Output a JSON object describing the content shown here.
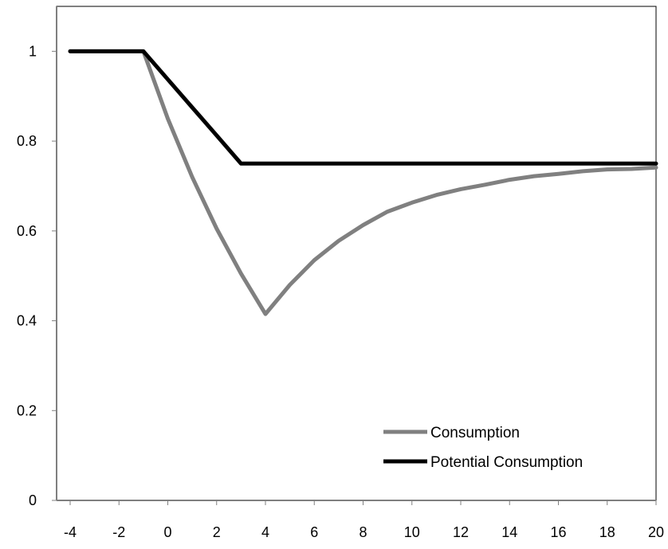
{
  "chart_data": {
    "type": "line",
    "title": "",
    "xlabel": "",
    "ylabel": "",
    "xlim": [
      -4,
      20
    ],
    "ylim": [
      0,
      1.1
    ],
    "x_ticks": [
      -4,
      -2,
      0,
      2,
      4,
      6,
      8,
      10,
      12,
      14,
      16,
      18,
      20
    ],
    "y_ticks": [
      0,
      0.2,
      0.4,
      0.6,
      0.8,
      1
    ],
    "x_tick_labels": [
      "-4",
      "-2",
      "0",
      "2",
      "4",
      "6",
      "8",
      "10",
      "12",
      "14",
      "16",
      "18",
      "20"
    ],
    "y_tick_labels": [
      "0",
      "0.2",
      "0.4",
      "0.6",
      "0.8",
      "1"
    ],
    "grid": false,
    "legend_position": "bottom-right",
    "x": [
      -4,
      -3,
      -2,
      -1,
      0,
      1,
      2,
      3,
      4,
      5,
      6,
      7,
      8,
      9,
      10,
      11,
      12,
      13,
      14,
      15,
      16,
      17,
      18,
      19,
      20
    ],
    "series": [
      {
        "name": "Consumption",
        "color": "#808080",
        "values": [
          1,
          1,
          1,
          1,
          0.85,
          0.72,
          0.605,
          0.505,
          0.415,
          0.48,
          0.535,
          0.578,
          0.613,
          0.643,
          0.663,
          0.68,
          0.693,
          0.703,
          0.714,
          0.722,
          0.727,
          0.733,
          0.737,
          0.738,
          0.741
        ]
      },
      {
        "name": "Potential Consumption",
        "color": "#000000",
        "values": [
          1,
          1,
          1,
          1,
          0.9375,
          0.875,
          0.8125,
          0.75,
          0.75,
          0.75,
          0.75,
          0.75,
          0.75,
          0.75,
          0.75,
          0.75,
          0.75,
          0.75,
          0.75,
          0.75,
          0.75,
          0.75,
          0.75,
          0.75,
          0.75
        ]
      }
    ]
  }
}
